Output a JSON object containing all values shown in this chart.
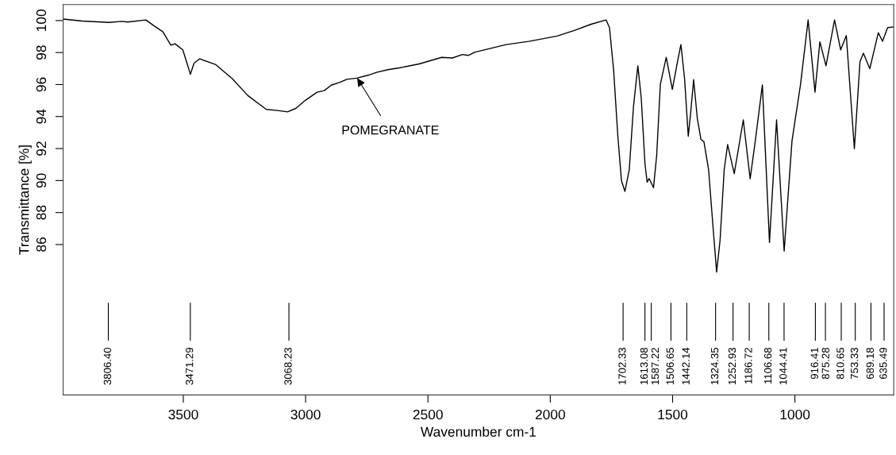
{
  "chart_data": {
    "type": "line",
    "xlabel": "Wavenumber cm-1",
    "ylabel": "Transmittance [%]",
    "xlim": [
      3991,
      596
    ],
    "ylim": [
      76.6,
      101.0
    ],
    "xticks": [
      3500,
      3000,
      2500,
      2000,
      1500,
      1000
    ],
    "yticks": [
      86,
      88,
      90,
      92,
      94,
      96,
      98,
      100
    ],
    "grid": false,
    "legend": false,
    "marker": "none",
    "line_style": "solid",
    "series": [
      {
        "color": "#000000",
        "x": [
          3990,
          3913,
          3803,
          3751,
          3728,
          3653,
          3618,
          3583,
          3566,
          3551,
          3534,
          3502,
          3485,
          3471,
          3456,
          3433,
          3369,
          3300,
          3236,
          3161,
          3115,
          3074,
          3040,
          2999,
          2953,
          2924,
          2895,
          2860,
          2831,
          2791,
          2745,
          2710,
          2664,
          2617,
          2536,
          2444,
          2400,
          2359,
          2336,
          2307,
          2180,
          2088,
          1972,
          1902,
          1833,
          1772,
          1758,
          1741,
          1724,
          1709,
          1695,
          1677,
          1660,
          1642,
          1628,
          1613,
          1604,
          1596,
          1578,
          1565,
          1550,
          1526,
          1501,
          1480,
          1466,
          1451,
          1436,
          1426,
          1414,
          1399,
          1384,
          1372,
          1353,
          1335,
          1320,
          1306,
          1289,
          1275,
          1248,
          1211,
          1183,
          1162,
          1133,
          1104,
          1075,
          1044,
          1012,
          977,
          946,
          918,
          898,
          873,
          838,
          813,
          790,
          757,
          734,
          720,
          694,
          659,
          642,
          621,
          596
        ],
        "values": [
          100.09,
          99.97,
          99.88,
          99.95,
          99.91,
          100.04,
          99.65,
          99.29,
          98.85,
          98.46,
          98.55,
          98.17,
          97.34,
          96.64,
          97.34,
          97.61,
          97.26,
          96.37,
          95.31,
          94.45,
          94.38,
          94.29,
          94.51,
          95.04,
          95.52,
          95.62,
          95.96,
          96.14,
          96.33,
          96.4,
          96.58,
          96.76,
          96.93,
          97.04,
          97.29,
          97.7,
          97.66,
          97.88,
          97.82,
          98.03,
          98.5,
          98.7,
          99.03,
          99.38,
          99.77,
          100.04,
          99.56,
          96.9,
          92.82,
          89.99,
          89.32,
          90.7,
          94.6,
          97.17,
          95.13,
          91.06,
          89.9,
          90.13,
          89.55,
          91.58,
          96.02,
          97.7,
          95.7,
          97.43,
          98.5,
          96.37,
          92.77,
          94.24,
          96.31,
          93.89,
          92.56,
          92.43,
          90.7,
          87.15,
          84.28,
          86.26,
          90.7,
          92.25,
          90.43,
          93.79,
          90.11,
          92.47,
          95.98,
          86.13,
          93.79,
          85.59,
          92.47,
          96.02,
          100.04,
          95.52,
          98.67,
          97.17,
          100.04,
          98.17,
          99.06,
          91.99,
          97.43,
          97.96,
          96.99,
          99.24,
          98.7,
          99.56,
          99.6
        ]
      }
    ],
    "annotations": [
      {
        "text": "POMEGRANATE",
        "x": 2789,
        "y": 96.4
      }
    ],
    "ref_lines": [
      {
        "axis": "x",
        "value": 3806.4,
        "label": "3806.40"
      },
      {
        "axis": "x",
        "value": 3471.29,
        "label": "3471.29"
      },
      {
        "axis": "x",
        "value": 3068.23,
        "label": "3068.23"
      },
      {
        "axis": "x",
        "value": 1702.33,
        "label": "1702.33"
      },
      {
        "axis": "x",
        "value": 1613.08,
        "label": "1613.08"
      },
      {
        "axis": "x",
        "value": 1587.22,
        "label": "1587.22"
      },
      {
        "axis": "x",
        "value": 1506.65,
        "label": "1506.65"
      },
      {
        "axis": "x",
        "value": 1442.14,
        "label": "1442.14"
      },
      {
        "axis": "x",
        "value": 1324.35,
        "label": "1324.35"
      },
      {
        "axis": "x",
        "value": 1252.93,
        "label": "1252.93"
      },
      {
        "axis": "x",
        "value": 1186.72,
        "label": "1186.72"
      },
      {
        "axis": "x",
        "value": 1106.68,
        "label": "1106.68"
      },
      {
        "axis": "x",
        "value": 1044.41,
        "label": "1044.41"
      },
      {
        "axis": "x",
        "value": 916.41,
        "label": "916.41"
      },
      {
        "axis": "x",
        "value": 875.28,
        "label": "875.28"
      },
      {
        "axis": "x",
        "value": 810.65,
        "label": "810.65"
      },
      {
        "axis": "x",
        "value": 753.33,
        "label": "753.33"
      },
      {
        "axis": "x",
        "value": 689.18,
        "label": "689.18"
      },
      {
        "axis": "x",
        "value": 635.49,
        "label": "635.49"
      }
    ]
  }
}
